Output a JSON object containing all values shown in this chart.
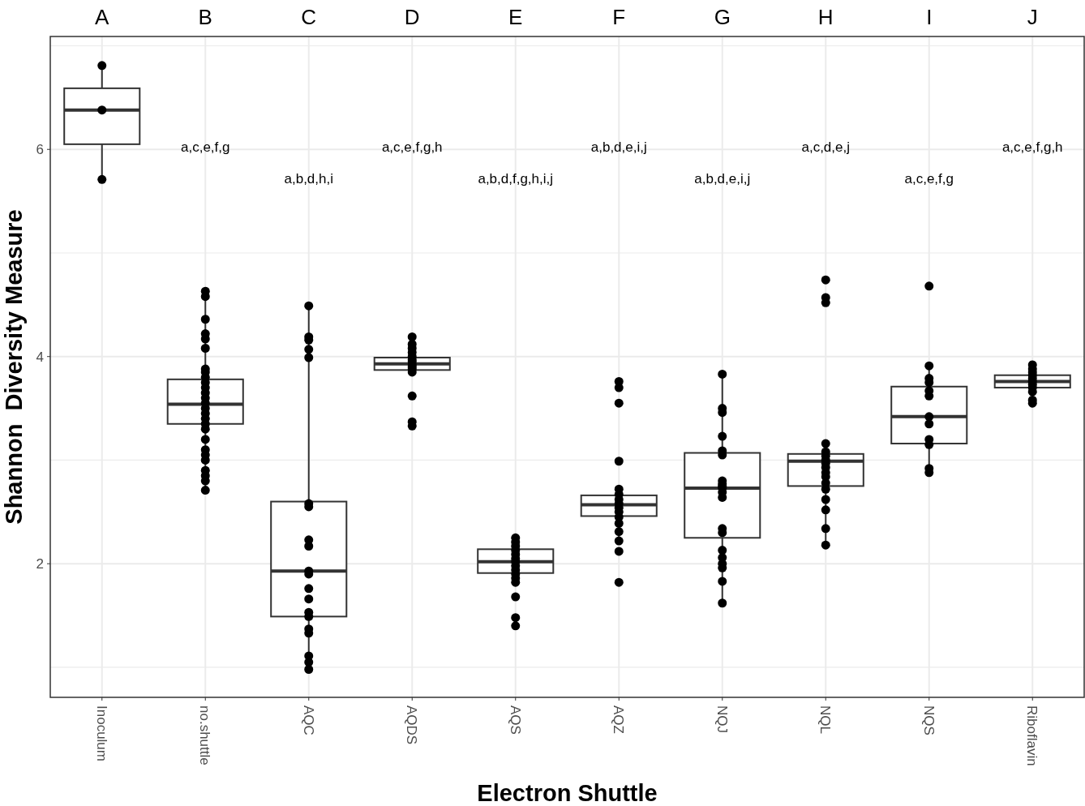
{
  "chart_data": {
    "type": "box",
    "xlabel": "Electron Shuttle",
    "ylabel": "Shannon  Diversity Measure",
    "categories": [
      "Inoculum",
      "no.shuttle",
      "AQC",
      "AQDS",
      "AQS",
      "AQZ",
      "NQJ",
      "NQL",
      "NQS",
      "Riboflavin"
    ],
    "ylim": [
      0.71,
      7.09
    ],
    "yticks": [
      {
        "value": 1,
        "label": null
      },
      2,
      {
        "value": 3,
        "label": null
      },
      4,
      {
        "value": 5,
        "label": null
      },
      6,
      {
        "value": 7,
        "label": null
      }
    ],
    "grid": true,
    "marker": "circle",
    "series": [
      {
        "color": "#333333",
        "boxes": [
          {
            "low": 5.71,
            "q1": 6.05,
            "median": 6.38,
            "q3": 6.59,
            "high": 6.81
          },
          {
            "low": 2.71,
            "q1": 3.35,
            "median": 3.54,
            "q3": 3.78,
            "high": 4.63
          },
          {
            "low": 0.98,
            "q1": 1.49,
            "median": 1.93,
            "q3": 2.6,
            "high": 4.49
          },
          {
            "low": 3.85,
            "q1": 3.87,
            "median": 3.93,
            "q3": 3.99,
            "high": 4.1
          },
          {
            "low": 1.82,
            "q1": 1.91,
            "median": 2.02,
            "q3": 2.14,
            "high": 2.25
          },
          {
            "low": 2.22,
            "q1": 2.46,
            "median": 2.57,
            "q3": 2.66,
            "high": 2.72
          },
          {
            "low": 1.62,
            "q1": 2.25,
            "median": 2.73,
            "q3": 3.07,
            "high": 3.83
          },
          {
            "low": 2.18,
            "q1": 2.75,
            "median": 2.99,
            "q3": 3.06,
            "high": 3.16
          },
          {
            "low": 2.88,
            "q1": 3.16,
            "median": 3.42,
            "q3": 3.71,
            "high": 3.91
          },
          {
            "low": 3.55,
            "q1": 3.7,
            "median": 3.76,
            "q3": 3.82,
            "high": 3.92
          }
        ]
      },
      {
        "type": "scatter",
        "color": "#000000",
        "x": [
          "Inoculum",
          "Inoculum",
          "Inoculum",
          "no.shuttle",
          "no.shuttle",
          "no.shuttle",
          "no.shuttle",
          "no.shuttle",
          "no.shuttle",
          "no.shuttle",
          "no.shuttle",
          "no.shuttle",
          "no.shuttle",
          "no.shuttle",
          "no.shuttle",
          "no.shuttle",
          "no.shuttle",
          "no.shuttle",
          "no.shuttle",
          "no.shuttle",
          "no.shuttle",
          "no.shuttle",
          "no.shuttle",
          "no.shuttle",
          "no.shuttle",
          "no.shuttle",
          "no.shuttle",
          "no.shuttle",
          "no.shuttle",
          "no.shuttle",
          "AQC",
          "AQC",
          "AQC",
          "AQC",
          "AQC",
          "AQC",
          "AQC",
          "AQC",
          "AQC",
          "AQC",
          "AQC",
          "AQC",
          "AQC",
          "AQC",
          "AQC",
          "AQC",
          "AQC",
          "AQC",
          "AQC",
          "AQC",
          "AQDS",
          "AQDS",
          "AQDS",
          "AQDS",
          "AQDS",
          "AQDS",
          "AQDS",
          "AQDS",
          "AQDS",
          "AQDS",
          "AQDS",
          "AQDS",
          "AQDS",
          "AQDS",
          "AQS",
          "AQS",
          "AQS",
          "AQS",
          "AQS",
          "AQS",
          "AQS",
          "AQS",
          "AQS",
          "AQS",
          "AQS",
          "AQS",
          "AQS",
          "AQS",
          "AQS",
          "AQZ",
          "AQZ",
          "AQZ",
          "AQZ",
          "AQZ",
          "AQZ",
          "AQZ",
          "AQZ",
          "AQZ",
          "AQZ",
          "AQZ",
          "AQZ",
          "AQZ",
          "AQZ",
          "AQZ",
          "AQZ",
          "NQJ",
          "NQJ",
          "NQJ",
          "NQJ",
          "NQJ",
          "NQJ",
          "NQJ",
          "NQJ",
          "NQJ",
          "NQJ",
          "NQJ",
          "NQJ",
          "NQJ",
          "NQJ",
          "NQJ",
          "NQJ",
          "NQJ",
          "NQJ",
          "NQJ",
          "NQJ",
          "NQL",
          "NQL",
          "NQL",
          "NQL",
          "NQL",
          "NQL",
          "NQL",
          "NQL",
          "NQL",
          "NQL",
          "NQL",
          "NQL",
          "NQL",
          "NQL",
          "NQL",
          "NQL",
          "NQL",
          "NQS",
          "NQS",
          "NQS",
          "NQS",
          "NQS",
          "NQS",
          "NQS",
          "NQS",
          "NQS",
          "NQS",
          "NQS",
          "NQS",
          "Riboflavin",
          "Riboflavin",
          "Riboflavin",
          "Riboflavin",
          "Riboflavin",
          "Riboflavin",
          "Riboflavin",
          "Riboflavin",
          "Riboflavin",
          "Riboflavin",
          "Riboflavin"
        ],
        "values": [
          6.81,
          6.38,
          5.71,
          4.63,
          4.58,
          4.36,
          4.22,
          4.17,
          4.08,
          3.88,
          3.85,
          3.8,
          3.75,
          3.7,
          3.65,
          3.6,
          3.55,
          3.5,
          3.45,
          3.4,
          3.35,
          3.3,
          3.2,
          3.1,
          3.05,
          3.0,
          2.9,
          2.85,
          2.8,
          2.71,
          4.49,
          4.19,
          4.16,
          4.07,
          3.99,
          2.58,
          2.55,
          2.23,
          2.17,
          1.93,
          1.9,
          1.76,
          1.66,
          1.53,
          1.49,
          1.37,
          1.33,
          1.11,
          1.05,
          0.98,
          4.19,
          4.12,
          4.08,
          4.04,
          4.0,
          3.97,
          3.95,
          3.92,
          3.9,
          3.88,
          3.85,
          3.62,
          3.37,
          3.33,
          2.25,
          2.21,
          2.17,
          2.13,
          2.09,
          2.05,
          2.02,
          1.98,
          1.94,
          1.9,
          1.86,
          1.82,
          1.68,
          1.48,
          1.4,
          3.76,
          3.7,
          3.55,
          2.99,
          2.72,
          2.67,
          2.62,
          2.58,
          2.54,
          2.5,
          2.45,
          2.39,
          2.31,
          2.22,
          2.12,
          1.82,
          3.83,
          3.5,
          3.46,
          3.23,
          3.09,
          3.05,
          2.8,
          2.77,
          2.75,
          2.73,
          2.69,
          2.64,
          2.34,
          2.3,
          2.13,
          2.06,
          2.0,
          1.96,
          1.83,
          1.62,
          4.74,
          4.57,
          4.52,
          3.16,
          3.08,
          3.04,
          3.0,
          2.97,
          2.93,
          2.88,
          2.84,
          2.78,
          2.72,
          2.62,
          2.52,
          2.34,
          2.18,
          4.68,
          3.91,
          3.79,
          3.75,
          3.67,
          3.62,
          3.42,
          3.35,
          3.2,
          3.15,
          2.92,
          2.88,
          3.92,
          3.88,
          3.85,
          3.82,
          3.79,
          3.76,
          3.73,
          3.7,
          3.66,
          3.58,
          3.55
        ]
      }
    ],
    "annotations": [
      "A",
      "B",
      "C",
      "D",
      "E",
      "F",
      "G",
      "H",
      "I",
      "J",
      "a,c,e,f,g",
      "a,b,d,h,i",
      "a,c,e,f,g,h",
      "a,b,d,f,g,h,i,j",
      "a,b,d,e,i,j",
      "a,b,d,e,i,j",
      "a,c,d,e,j",
      "a,c,e,f,g",
      "a,c,e,f,g,h"
    ]
  }
}
